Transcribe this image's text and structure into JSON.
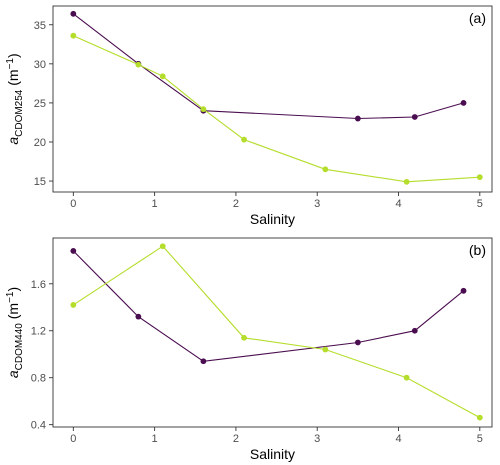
{
  "colors": {
    "series_dark": "#4a0d4f",
    "series_light": "#b5dd2b",
    "frame": "#333333",
    "tick": "#333333"
  },
  "chart_data": [
    {
      "type": "line",
      "panel_label": "(a)",
      "xlabel": "Salinity",
      "ylabel_prefix": "a",
      "ylabel_subscript": "CDOM254",
      "ylabel_unit": "(m",
      "ylabel_exp": "−1",
      "ylabel_close": ")",
      "xlim": [
        -0.25,
        5.15
      ],
      "ylim": [
        13.6,
        37.4
      ],
      "xticks": [
        0,
        1,
        2,
        3,
        4,
        5
      ],
      "xtick_labels": [
        "0",
        "1",
        "2",
        "3",
        "4",
        "5"
      ],
      "yticks": [
        15,
        20,
        25,
        30,
        35
      ],
      "ytick_labels": [
        "15",
        "20",
        "25",
        "30",
        "35"
      ],
      "grid": false,
      "series": [
        {
          "color": "#4a0d4f",
          "x": [
            0,
            0.8,
            1.6,
            3.5,
            4.2,
            4.8
          ],
          "y": [
            36.4,
            30.0,
            24.0,
            23.0,
            23.2,
            25.0
          ]
        },
        {
          "color": "#b5dd2b",
          "x": [
            0,
            0.8,
            1.1,
            1.6,
            2.1,
            3.1,
            4.1,
            5.0
          ],
          "y": [
            33.6,
            29.9,
            28.4,
            24.2,
            20.3,
            16.5,
            14.9,
            15.5
          ]
        }
      ]
    },
    {
      "type": "line",
      "panel_label": "(b)",
      "xlabel": "Salinity",
      "ylabel_prefix": "a",
      "ylabel_subscript": "CDOM440",
      "ylabel_unit": "(m",
      "ylabel_exp": "−1",
      "ylabel_close": ")",
      "xlim": [
        -0.25,
        5.15
      ],
      "ylim": [
        0.38,
        1.99
      ],
      "xticks": [
        0,
        1,
        2,
        3,
        4,
        5
      ],
      "xtick_labels": [
        "0",
        "1",
        "2",
        "3",
        "4",
        "5"
      ],
      "yticks": [
        0.4,
        0.8,
        1.2,
        1.6
      ],
      "ytick_labels": [
        "0.4",
        "0.8",
        "1.2",
        "1.6"
      ],
      "grid": false,
      "series": [
        {
          "color": "#4a0d4f",
          "x": [
            0,
            0.8,
            1.6,
            3.5,
            4.2,
            4.8
          ],
          "y": [
            1.88,
            1.32,
            0.94,
            1.1,
            1.2,
            1.54
          ]
        },
        {
          "color": "#b5dd2b",
          "x": [
            0,
            1.1,
            2.1,
            3.1,
            4.1,
            5.0
          ],
          "y": [
            1.42,
            1.92,
            1.14,
            1.04,
            0.8,
            0.46
          ]
        }
      ]
    }
  ]
}
